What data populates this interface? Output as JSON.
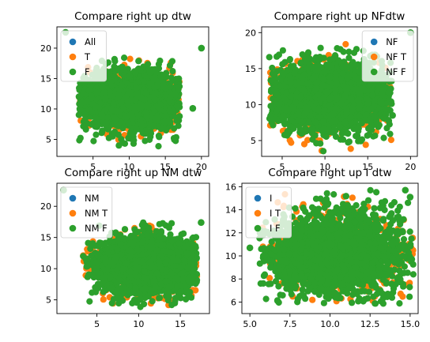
{
  "colors": {
    "blue": "#1f77b4",
    "orange": "#ff7f0e",
    "green": "#2ca02c",
    "axis": "#000000"
  },
  "chart_data": [
    {
      "type": "scatter",
      "title": "Compare right up dtw",
      "xlim": [
        0,
        21
      ],
      "ylim": [
        2.2,
        23.5
      ],
      "xticks": [
        5,
        10,
        15,
        20
      ],
      "yticks": [
        5,
        10,
        15,
        20
      ],
      "legend_position": "upper-left",
      "series": [
        {
          "name": "All",
          "color": "#1f77b4"
        },
        {
          "name": "T",
          "color": "#ff7f0e"
        },
        {
          "name": "F",
          "color": "#2ca02c"
        }
      ],
      "cluster": {
        "x_center": 10.5,
        "y_center": 11.2,
        "x_spread": 3.7,
        "y_spread": 2.3,
        "x_range": [
          3,
          17
        ],
        "y_range": [
          3,
          18.5
        ]
      },
      "highlights": [
        {
          "x": 1.2,
          "y": 22.6,
          "series": "F"
        },
        {
          "x": 20.0,
          "y": 20.0,
          "series": "F"
        },
        {
          "x": 18.8,
          "y": 10.1,
          "series": "F"
        }
      ]
    },
    {
      "type": "scatter",
      "title": "Compare right up NFdtw",
      "xlim": [
        2.6,
        20.8
      ],
      "ylim": [
        2.8,
        20.8
      ],
      "xticks": [
        5,
        10,
        15,
        20
      ],
      "yticks": [
        5,
        10,
        15,
        20
      ],
      "legend_position": "upper-right",
      "series": [
        {
          "name": "NF",
          "color": "#1f77b4"
        },
        {
          "name": "NF T",
          "color": "#ff7f0e"
        },
        {
          "name": "NF F",
          "color": "#2ca02c"
        }
      ],
      "cluster": {
        "x_center": 10.5,
        "y_center": 11.0,
        "x_spread": 3.8,
        "y_spread": 2.4,
        "x_range": [
          3.5,
          17.8
        ],
        "y_range": [
          3.2,
          18.5
        ]
      },
      "highlights": [
        {
          "x": 20.0,
          "y": 20.0,
          "series": "NF F"
        },
        {
          "x": 17.9,
          "y": 8.5,
          "series": "NF F"
        }
      ]
    },
    {
      "type": "scatter",
      "title": "Compare right up NM dtw",
      "xlim": [
        0.2,
        18.5
      ],
      "ylim": [
        2.8,
        23.7
      ],
      "xticks": [
        5,
        10,
        15
      ],
      "yticks": [
        5,
        10,
        15,
        20
      ],
      "legend_position": "upper-left",
      "series": [
        {
          "name": "NM",
          "color": "#1f77b4"
        },
        {
          "name": "NM T",
          "color": "#ff7f0e"
        },
        {
          "name": "NM F",
          "color": "#2ca02c"
        }
      ],
      "cluster": {
        "x_center": 11.0,
        "y_center": 10.5,
        "x_spread": 3.2,
        "y_spread": 2.4,
        "x_range": [
          3.3,
          17
        ],
        "y_range": [
          3.8,
          17.5
        ]
      },
      "highlights": [
        {
          "x": 1.0,
          "y": 22.6,
          "series": "NM F"
        },
        {
          "x": 17.5,
          "y": 17.4,
          "series": "NM F"
        }
      ]
    },
    {
      "type": "scatter",
      "title": "Compare right up I dtw",
      "xlim": [
        4.5,
        15.5
      ],
      "ylim": [
        5.0,
        16.3
      ],
      "xticks": [
        5.0,
        7.5,
        10.0,
        12.5,
        15.0
      ],
      "yticks": [
        6,
        8,
        10,
        12,
        14,
        16
      ],
      "legend_position": "upper-left",
      "series": [
        {
          "name": "I",
          "color": "#1f77b4"
        },
        {
          "name": "I T",
          "color": "#ff7f0e"
        },
        {
          "name": "I F",
          "color": "#2ca02c"
        }
      ],
      "cluster": {
        "x_center": 10.4,
        "y_center": 10.2,
        "x_spread": 2.2,
        "y_spread": 1.8,
        "x_range": [
          5.6,
          15.2
        ],
        "y_range": [
          5.8,
          15.7
        ]
      },
      "highlights": [
        {
          "x": 5.0,
          "y": 10.7,
          "series": "I F"
        },
        {
          "x": 15.0,
          "y": 15.1,
          "series": "I F"
        },
        {
          "x": 14.7,
          "y": 15.7,
          "series": "I F"
        }
      ]
    }
  ]
}
